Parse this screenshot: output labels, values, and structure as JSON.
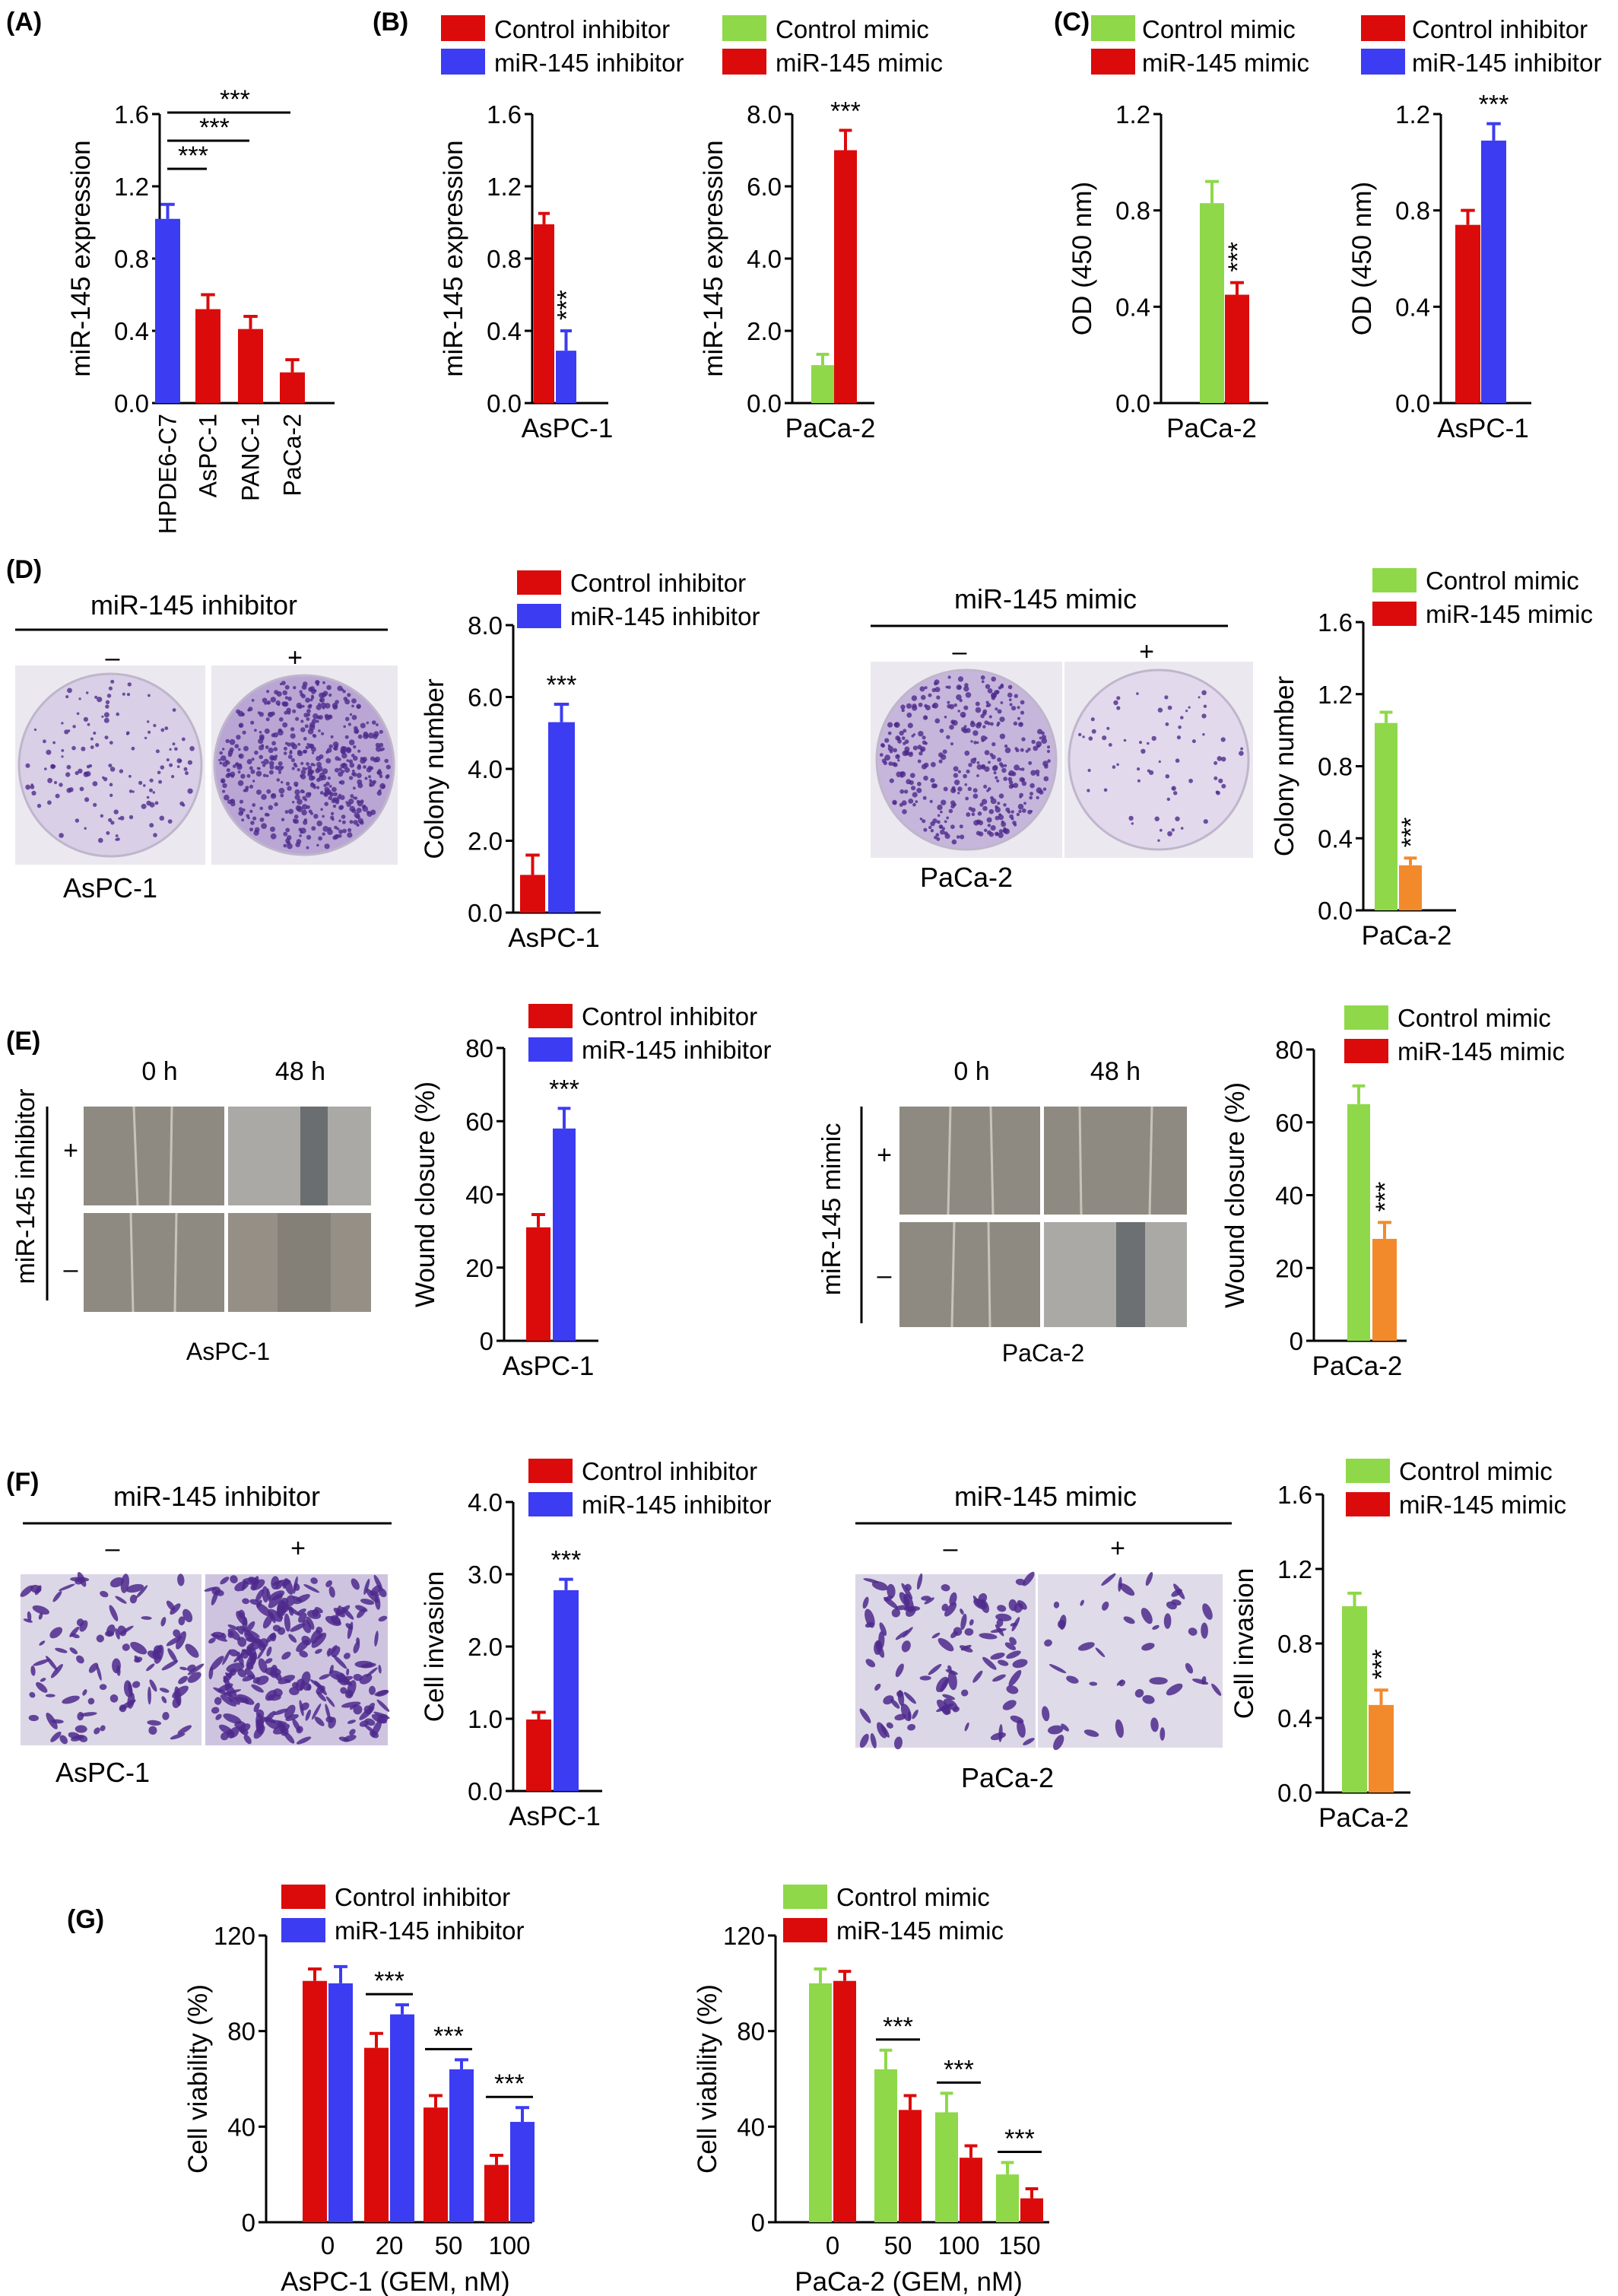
{
  "colors": {
    "red": "#db0b0b",
    "blue": "#3c3cf2",
    "green": "#8ed84a",
    "orange": "#f28a2c",
    "purple": "#4e2a8c",
    "plate": "#ddd5e8"
  },
  "panels": {
    "A": {
      "letter": "(A)"
    },
    "B": {
      "letter": "(B)",
      "legend": [
        {
          "label": "Control inhibitor",
          "color": "red"
        },
        {
          "label": "miR-145 inhibitor",
          "color": "blue"
        },
        {
          "label": "Control mimic",
          "color": "green"
        },
        {
          "label": "miR-145 mimic",
          "color": "red"
        }
      ]
    },
    "C": {
      "letter": "(C)",
      "legend": [
        {
          "label": "Control mimic",
          "color": "green"
        },
        {
          "label": "miR-145 mimic",
          "color": "red"
        },
        {
          "label": "Control inhibitor",
          "color": "red"
        },
        {
          "label": "miR-145 inhibitor",
          "color": "blue"
        }
      ]
    },
    "D": {
      "letter": "(D)",
      "left_header": "miR-145 inhibitor",
      "left_minus": "–",
      "left_plus": "+",
      "left_caption": "AsPC-1",
      "right_header": "miR-145 mimic",
      "right_minus": "–",
      "right_plus": "+",
      "right_caption": "PaCa-2"
    },
    "E": {
      "letter": "(E)",
      "left_col0": "0 h",
      "left_col1": "48 h",
      "left_side": "miR-145 inhibitor",
      "left_plus": "+",
      "left_minus": "–",
      "left_caption": "AsPC-1",
      "right_col0": "0 h",
      "right_col1": "48 h",
      "right_side": "miR-145 mimic",
      "right_plus": "+",
      "right_minus": "–",
      "right_caption": "PaCa-2"
    },
    "F": {
      "letter": "(F)",
      "left_header": "miR-145 inhibitor",
      "left_minus": "–",
      "left_plus": "+",
      "left_caption": "AsPC-1",
      "right_header": "miR-145 mimic",
      "right_minus": "–",
      "right_plus": "+",
      "right_caption": "PaCa-2"
    },
    "G": {
      "letter": "(G)"
    }
  },
  "chart_data": [
    {
      "id": "A",
      "type": "bar",
      "ylabel": "miR-145 expression",
      "xlabel": "",
      "ylim": [
        0,
        1.6
      ],
      "yticks": [
        "0.0",
        "0.4",
        "0.8",
        "1.2",
        "1.6"
      ],
      "categories": [
        "HPDE6-C7",
        "AsPC-1",
        "PANC-1",
        "PaCa-2"
      ],
      "values": [
        1.02,
        0.52,
        0.41,
        0.17
      ],
      "errors": [
        0.08,
        0.08,
        0.07,
        0.07
      ],
      "colors": [
        "blue",
        "red",
        "red",
        "red"
      ],
      "annotations": [
        "***",
        "***",
        "***"
      ]
    },
    {
      "id": "B1",
      "type": "bar",
      "ylabel": "miR-145 expression",
      "xlabel": "AsPC-1",
      "ylim": [
        0,
        1.6
      ],
      "yticks": [
        "0.0",
        "0.4",
        "0.8",
        "1.2",
        "1.6"
      ],
      "series": [
        {
          "name": "Control inhibitor",
          "value": 0.99,
          "error": 0.06
        },
        {
          "name": "miR-145 inhibitor",
          "value": 0.29,
          "error": 0.11
        }
      ],
      "colors": [
        "red",
        "blue"
      ],
      "annotation": "***"
    },
    {
      "id": "B2",
      "type": "bar",
      "ylabel": "miR-145 expression",
      "xlabel": "PaCa-2",
      "ylim": [
        0,
        8.0
      ],
      "yticks": [
        "0.0",
        "2.0",
        "4.0",
        "6.0",
        "8.0"
      ],
      "series": [
        {
          "name": "Control mimic",
          "value": 1.05,
          "error": 0.3
        },
        {
          "name": "miR-145 mimic",
          "value": 7.0,
          "error": 0.55
        }
      ],
      "colors": [
        "green",
        "red"
      ],
      "annotation": "***"
    },
    {
      "id": "C1",
      "type": "bar",
      "ylabel": "OD (450 nm)",
      "xlabel": "PaCa-2",
      "ylim": [
        0,
        1.2
      ],
      "yticks": [
        "0.0",
        "0.4",
        "0.8",
        "1.2"
      ],
      "series": [
        {
          "name": "Control mimic",
          "value": 0.83,
          "error": 0.09
        },
        {
          "name": "miR-145 mimic",
          "value": 0.45,
          "error": 0.05
        }
      ],
      "colors": [
        "green",
        "red"
      ],
      "annotation": "***"
    },
    {
      "id": "C2",
      "type": "bar",
      "ylabel": "OD (450 nm)",
      "xlabel": "AsPC-1",
      "ylim": [
        0,
        1.2
      ],
      "yticks": [
        "0.0",
        "0.4",
        "0.8",
        "1.2"
      ],
      "series": [
        {
          "name": "Control inhibitor",
          "value": 0.74,
          "error": 0.06
        },
        {
          "name": "miR-145 inhibitor",
          "value": 1.09,
          "error": 0.07
        }
      ],
      "colors": [
        "red",
        "blue"
      ],
      "annotation": "***"
    },
    {
      "id": "D1",
      "type": "bar",
      "ylabel": "Colony number",
      "xlabel": "AsPC-1",
      "ylim": [
        0,
        8.0
      ],
      "yticks": [
        "0.0",
        "2.0",
        "4.0",
        "6.0",
        "8.0"
      ],
      "legend": [
        "Control inhibitor",
        "miR-145 inhibitor"
      ],
      "series": [
        {
          "name": "Control inhibitor",
          "value": 1.05,
          "error": 0.55
        },
        {
          "name": "miR-145 inhibitor",
          "value": 5.3,
          "error": 0.5
        }
      ],
      "colors": [
        "red",
        "blue"
      ],
      "annotation": "***"
    },
    {
      "id": "D2",
      "type": "bar",
      "ylabel": "Colony number",
      "xlabel": "PaCa-2",
      "ylim": [
        0,
        1.6
      ],
      "yticks": [
        "0.0",
        "0.4",
        "0.8",
        "1.2",
        "1.6"
      ],
      "legend": [
        "Control mimic",
        "miR-145 mimic"
      ],
      "series": [
        {
          "name": "Control mimic",
          "value": 1.04,
          "error": 0.06
        },
        {
          "name": "miR-145 mimic",
          "value": 0.25,
          "error": 0.04
        }
      ],
      "colors": [
        "green",
        "orange"
      ],
      "legend_colors": [
        "green",
        "red"
      ],
      "annotation": "***"
    },
    {
      "id": "E1",
      "type": "bar",
      "ylabel": "Wound closure (%)",
      "xlabel": "AsPC-1",
      "ylim": [
        0,
        80
      ],
      "yticks": [
        "0",
        "20",
        "40",
        "60",
        "80"
      ],
      "legend": [
        "Control inhibitor",
        "miR-145 inhibitor"
      ],
      "series": [
        {
          "name": "Control inhibitor",
          "value": 31,
          "error": 3.5
        },
        {
          "name": "miR-145 inhibitor",
          "value": 58,
          "error": 5.5
        }
      ],
      "colors": [
        "red",
        "blue"
      ],
      "annotation": "***"
    },
    {
      "id": "E2",
      "type": "bar",
      "ylabel": "Wound closure (%)",
      "xlabel": "PaCa-2",
      "ylim": [
        0,
        80
      ],
      "yticks": [
        "0",
        "20",
        "40",
        "60",
        "80"
      ],
      "legend": [
        "Control mimic",
        "miR-145 mimic"
      ],
      "series": [
        {
          "name": "Control mimic",
          "value": 65,
          "error": 5
        },
        {
          "name": "miR-145 mimic",
          "value": 28,
          "error": 4.5
        }
      ],
      "colors": [
        "green",
        "orange"
      ],
      "legend_colors": [
        "green",
        "red"
      ],
      "annotation": "***"
    },
    {
      "id": "F1",
      "type": "bar",
      "ylabel": "Cell invasion",
      "xlabel": "AsPC-1",
      "ylim": [
        0,
        4.0
      ],
      "yticks": [
        "0.0",
        "1.0",
        "2.0",
        "3.0",
        "4.0"
      ],
      "legend": [
        "Control inhibitor",
        "miR-145 inhibitor"
      ],
      "series": [
        {
          "name": "Control inhibitor",
          "value": 0.99,
          "error": 0.1
        },
        {
          "name": "miR-145 inhibitor",
          "value": 2.78,
          "error": 0.15
        }
      ],
      "colors": [
        "red",
        "blue"
      ],
      "annotation": "***"
    },
    {
      "id": "F2",
      "type": "bar",
      "ylabel": "Cell invasion",
      "xlabel": "PaCa-2",
      "ylim": [
        0,
        1.6
      ],
      "yticks": [
        "0.0",
        "0.4",
        "0.8",
        "1.2",
        "1.6"
      ],
      "legend": [
        "Control mimic",
        "miR-145 mimic"
      ],
      "series": [
        {
          "name": "Control mimic",
          "value": 1.0,
          "error": 0.07
        },
        {
          "name": "miR-145 mimic",
          "value": 0.47,
          "error": 0.08
        }
      ],
      "colors": [
        "green",
        "orange"
      ],
      "legend_colors": [
        "green",
        "red"
      ],
      "annotation": "***"
    },
    {
      "id": "G1",
      "type": "bar",
      "ylabel": "Cell viability (%)",
      "xlabel": "AsPC-1 (GEM, nM)",
      "ylim": [
        0,
        120
      ],
      "yticks": [
        "0",
        "40",
        "80",
        "120"
      ],
      "legend": [
        "Control inhibitor",
        "miR-145 inhibitor"
      ],
      "categories": [
        "0",
        "20",
        "50",
        "100"
      ],
      "series": [
        {
          "name": "Control inhibitor",
          "values": [
            101,
            73,
            48,
            24
          ],
          "errors": [
            5,
            6,
            5,
            4
          ]
        },
        {
          "name": "miR-145 inhibitor",
          "values": [
            100,
            87,
            64,
            42
          ],
          "errors": [
            7,
            4,
            4,
            6
          ]
        }
      ],
      "colors": [
        "red",
        "blue"
      ],
      "annotations": [
        "",
        "***",
        "***",
        "***"
      ]
    },
    {
      "id": "G2",
      "type": "bar",
      "ylabel": "Cell viability (%)",
      "xlabel": "PaCa-2 (GEM, nM)",
      "ylim": [
        0,
        120
      ],
      "yticks": [
        "0",
        "40",
        "80",
        "120"
      ],
      "legend": [
        "Control mimic",
        "miR-145 mimic"
      ],
      "categories": [
        "0",
        "50",
        "100",
        "150"
      ],
      "series": [
        {
          "name": "Control mimic",
          "values": [
            100,
            64,
            46,
            20
          ],
          "errors": [
            6,
            8,
            8,
            5
          ]
        },
        {
          "name": "miR-145 mimic",
          "values": [
            101,
            47,
            27,
            10
          ],
          "errors": [
            4,
            6,
            5,
            4
          ]
        }
      ],
      "colors": [
        "green",
        "red"
      ],
      "annotations": [
        "",
        "***",
        "***",
        "***"
      ]
    }
  ]
}
